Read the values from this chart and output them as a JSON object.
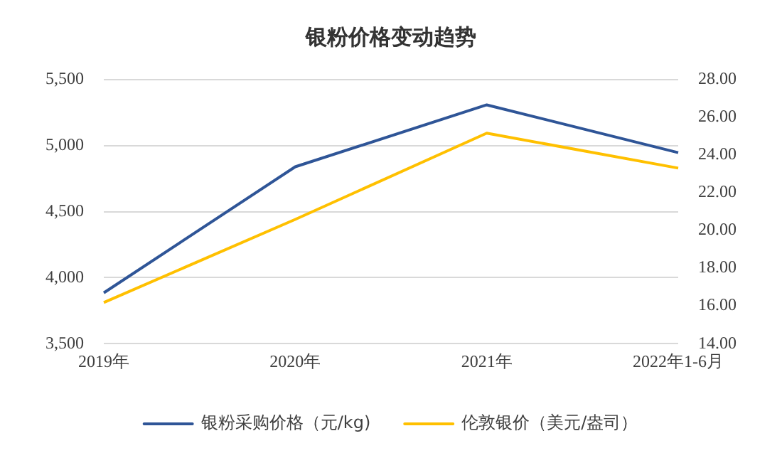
{
  "chart_data": {
    "type": "line",
    "title": "银粉价格变动趋势",
    "categories": [
      "2019年",
      "2020年",
      "2021年",
      "2022年1-6月"
    ],
    "series": [
      {
        "name": "银粉采购价格（元/kg)",
        "color": "#2f5597",
        "values": [
          3885,
          4840,
          5309,
          4947
        ]
      },
      {
        "name": "伦敦银价（美元/盎司）",
        "color": "#ffc000",
        "values": [
          16.18,
          20.59,
          25.16,
          23.31
        ],
        "axis": "y2"
      }
    ],
    "ylim": [
      3500,
      5500
    ],
    "yticks": [
      {
        "value": 3500,
        "label": "3,500"
      },
      {
        "value": 4000,
        "label": "4,000"
      },
      {
        "value": 4500,
        "label": "4,500"
      },
      {
        "value": 5000,
        "label": "5,000"
      },
      {
        "value": 5500,
        "label": "5,500"
      }
    ],
    "y2lim": [
      14,
      28
    ],
    "y2ticks": [
      {
        "value": 14,
        "label": "14.00"
      },
      {
        "value": 16,
        "label": "16.00"
      },
      {
        "value": 18,
        "label": "18.00"
      },
      {
        "value": 20,
        "label": "20.00"
      },
      {
        "value": 22,
        "label": "22.00"
      },
      {
        "value": 24,
        "label": "24.00"
      },
      {
        "value": 26,
        "label": "26.00"
      },
      {
        "value": 28,
        "label": "28.00"
      }
    ],
    "grid": "y",
    "legend": "bottom",
    "marker": "none",
    "line_style": "solid"
  }
}
